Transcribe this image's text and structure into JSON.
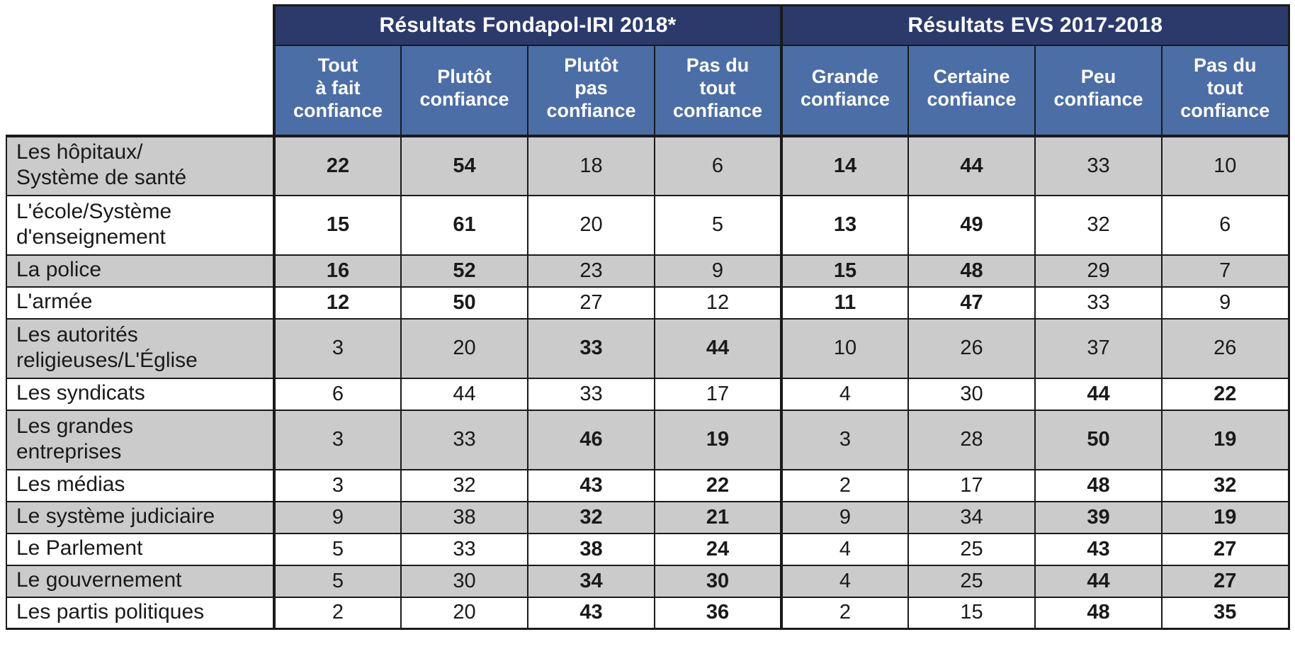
{
  "colors": {
    "section_header_bg": "#2B3A6B",
    "column_header_bg": "#4C6EA6",
    "header_text": "#FFFFFF",
    "row_gray": "#CBCBCB",
    "row_white": "#FFFFFF",
    "border": "#1A1A1A",
    "body_text": "#1A1A1A"
  },
  "chart_data": {
    "type": "table",
    "sections": [
      {
        "title": "Résultats Fondapol-IRI 2018*",
        "columns": [
          "Tout à fait confiance",
          "Plutôt confiance",
          "Plutôt pas confiance",
          "Pas du tout confiance"
        ]
      },
      {
        "title": "Résultats EVS 2017-2018",
        "columns": [
          "Grande confiance",
          "Certaine confiance",
          "Peu confiance",
          "Pas du tout confiance"
        ]
      }
    ],
    "header_display": [
      "Tout\nà fait\nconfiance",
      "Plutôt\nconfiance",
      "Plutôt\npas\nconfiance",
      "Pas du\ntout\nconfiance",
      "Grande\nconfiance",
      "Certaine\nconfiance",
      "Peu\nconfiance",
      "Pas du\ntout\nconfiance"
    ],
    "rows": [
      {
        "label": "Les hôpitaux/Système de santé",
        "label_display": "Les hôpitaux/\nSystème de santé",
        "cells": [
          {
            "v": 22,
            "b": true
          },
          {
            "v": 54,
            "b": true
          },
          {
            "v": 18,
            "b": false
          },
          {
            "v": 6,
            "b": false
          },
          {
            "v": 14,
            "b": true
          },
          {
            "v": 44,
            "b": true
          },
          {
            "v": 33,
            "b": false
          },
          {
            "v": 10,
            "b": false
          }
        ]
      },
      {
        "label": "L'école/Système d'enseignement",
        "label_display": "L'école/Système\nd'enseignement",
        "cells": [
          {
            "v": 15,
            "b": true
          },
          {
            "v": 61,
            "b": true
          },
          {
            "v": 20,
            "b": false
          },
          {
            "v": 5,
            "b": false
          },
          {
            "v": 13,
            "b": true
          },
          {
            "v": 49,
            "b": true
          },
          {
            "v": 32,
            "b": false
          },
          {
            "v": 6,
            "b": false
          }
        ]
      },
      {
        "label": "La police",
        "label_display": "La police",
        "cells": [
          {
            "v": 16,
            "b": true
          },
          {
            "v": 52,
            "b": true
          },
          {
            "v": 23,
            "b": false
          },
          {
            "v": 9,
            "b": false
          },
          {
            "v": 15,
            "b": true
          },
          {
            "v": 48,
            "b": true
          },
          {
            "v": 29,
            "b": false
          },
          {
            "v": 7,
            "b": false
          }
        ]
      },
      {
        "label": "L'armée",
        "label_display": "L'armée",
        "cells": [
          {
            "v": 12,
            "b": true
          },
          {
            "v": 50,
            "b": true
          },
          {
            "v": 27,
            "b": false
          },
          {
            "v": 12,
            "b": false
          },
          {
            "v": 11,
            "b": true
          },
          {
            "v": 47,
            "b": true
          },
          {
            "v": 33,
            "b": false
          },
          {
            "v": 9,
            "b": false
          }
        ]
      },
      {
        "label": "Les autorités religieuses/L'Église",
        "label_display": "Les autorités\nreligieuses/L'Église",
        "cells": [
          {
            "v": 3,
            "b": false
          },
          {
            "v": 20,
            "b": false
          },
          {
            "v": 33,
            "b": true
          },
          {
            "v": 44,
            "b": true
          },
          {
            "v": 10,
            "b": false
          },
          {
            "v": 26,
            "b": false
          },
          {
            "v": 37,
            "b": false
          },
          {
            "v": 26,
            "b": false
          }
        ]
      },
      {
        "label": "Les syndicats",
        "label_display": "Les syndicats",
        "cells": [
          {
            "v": 6,
            "b": false
          },
          {
            "v": 44,
            "b": false
          },
          {
            "v": 33,
            "b": false
          },
          {
            "v": 17,
            "b": false
          },
          {
            "v": 4,
            "b": false
          },
          {
            "v": 30,
            "b": false
          },
          {
            "v": 44,
            "b": true
          },
          {
            "v": 22,
            "b": true
          }
        ]
      },
      {
        "label": "Les grandes entreprises",
        "label_display": "Les grandes\nentreprises",
        "cells": [
          {
            "v": 3,
            "b": false
          },
          {
            "v": 33,
            "b": false
          },
          {
            "v": 46,
            "b": true
          },
          {
            "v": 19,
            "b": true
          },
          {
            "v": 3,
            "b": false
          },
          {
            "v": 28,
            "b": false
          },
          {
            "v": 50,
            "b": true
          },
          {
            "v": 19,
            "b": true
          }
        ]
      },
      {
        "label": "Les médias",
        "label_display": "Les médias",
        "cells": [
          {
            "v": 3,
            "b": false
          },
          {
            "v": 32,
            "b": false
          },
          {
            "v": 43,
            "b": true
          },
          {
            "v": 22,
            "b": true
          },
          {
            "v": 2,
            "b": false
          },
          {
            "v": 17,
            "b": false
          },
          {
            "v": 48,
            "b": true
          },
          {
            "v": 32,
            "b": true
          }
        ]
      },
      {
        "label": "Le système judiciaire",
        "label_display": "Le système judiciaire",
        "cells": [
          {
            "v": 9,
            "b": false
          },
          {
            "v": 38,
            "b": false
          },
          {
            "v": 32,
            "b": true
          },
          {
            "v": 21,
            "b": true
          },
          {
            "v": 9,
            "b": false
          },
          {
            "v": 34,
            "b": false
          },
          {
            "v": 39,
            "b": true
          },
          {
            "v": 19,
            "b": true
          }
        ]
      },
      {
        "label": "Le Parlement",
        "label_display": "Le Parlement",
        "cells": [
          {
            "v": 5,
            "b": false
          },
          {
            "v": 33,
            "b": false
          },
          {
            "v": 38,
            "b": true
          },
          {
            "v": 24,
            "b": true
          },
          {
            "v": 4,
            "b": false
          },
          {
            "v": 25,
            "b": false
          },
          {
            "v": 43,
            "b": true
          },
          {
            "v": 27,
            "b": true
          }
        ]
      },
      {
        "label": "Le gouvernement",
        "label_display": "Le gouvernement",
        "cells": [
          {
            "v": 5,
            "b": false
          },
          {
            "v": 30,
            "b": false
          },
          {
            "v": 34,
            "b": true
          },
          {
            "v": 30,
            "b": true
          },
          {
            "v": 4,
            "b": false
          },
          {
            "v": 25,
            "b": false
          },
          {
            "v": 44,
            "b": true
          },
          {
            "v": 27,
            "b": true
          }
        ]
      },
      {
        "label": "Les partis politiques",
        "label_display": "Les partis politiques",
        "cells": [
          {
            "v": 2,
            "b": false
          },
          {
            "v": 20,
            "b": false
          },
          {
            "v": 43,
            "b": true
          },
          {
            "v": 36,
            "b": true
          },
          {
            "v": 2,
            "b": false
          },
          {
            "v": 15,
            "b": false
          },
          {
            "v": 48,
            "b": true
          },
          {
            "v": 35,
            "b": true
          }
        ]
      }
    ]
  }
}
